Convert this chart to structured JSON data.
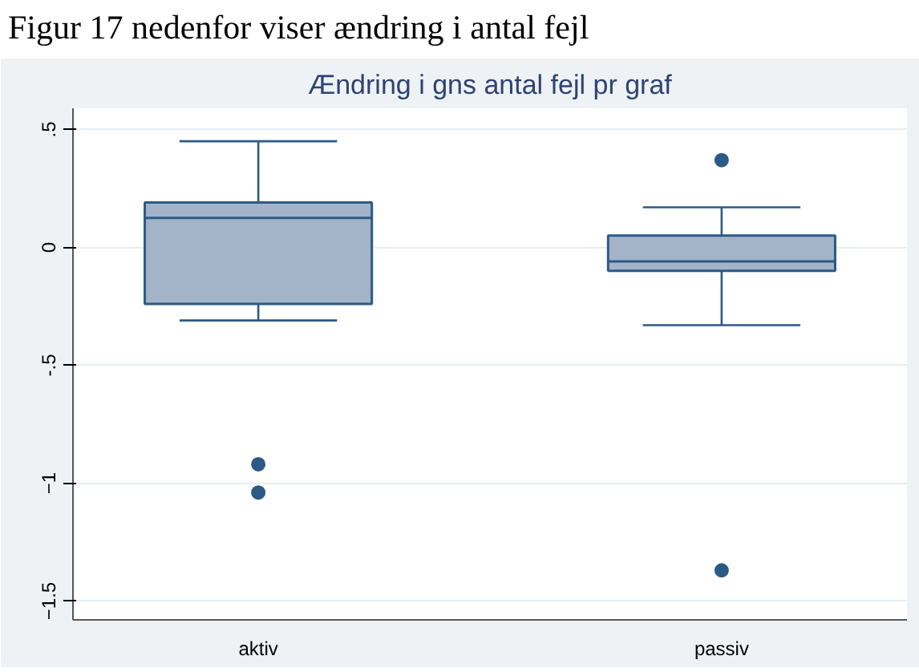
{
  "chart_data": {
    "type": "box",
    "title": "Ændring i gns antal fejl pr graf",
    "annotations": [
      "Figur 17 nedenfor viser ændring i antal fejl"
    ],
    "categories": [
      "aktiv",
      "passiv"
    ],
    "boxes": [
      {
        "low": -0.31,
        "q1": -0.24,
        "median": 0.125,
        "q3": 0.19,
        "high": 0.45,
        "outliers": [
          -0.92,
          -1.04
        ]
      },
      {
        "low": -0.33,
        "q1": -0.1,
        "median": -0.06,
        "q3": 0.05,
        "high": 0.17,
        "outliers": [
          0.37,
          -1.37
        ]
      }
    ],
    "color": "#a3b4c9",
    "ylim": [
      -1.58,
      0.59
    ],
    "yticks": [
      {
        "value": 0.5,
        "label": ".5"
      },
      0,
      {
        "value": -0.5,
        "label": "-.5"
      },
      -1,
      -1.5
    ],
    "grid": "y"
  }
}
